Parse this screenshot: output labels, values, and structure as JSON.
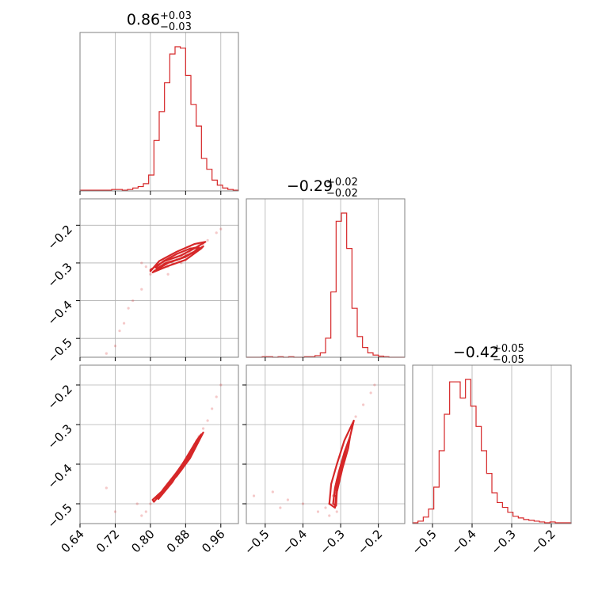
{
  "chart_data": {
    "type": "corner",
    "color": "#d62728",
    "grid": true,
    "parameters": [
      {
        "title": "0.86",
        "title_plus": "+0.03",
        "title_minus": "−0.03",
        "range": [
          0.64,
          1.0
        ],
        "ticks": [
          0.64,
          0.72,
          0.8,
          0.88,
          0.96
        ],
        "tick_labels": [
          "0.64",
          "0.72",
          "0.80",
          "0.88",
          "0.96"
        ],
        "histogram": {
          "bin_edges": [
            0.64,
            0.652,
            0.664,
            0.676,
            0.688,
            0.7,
            0.712,
            0.724,
            0.736,
            0.748,
            0.76,
            0.772,
            0.784,
            0.796,
            0.808,
            0.82,
            0.832,
            0.844,
            0.856,
            0.868,
            0.88,
            0.892,
            0.904,
            0.916,
            0.928,
            0.94,
            0.952,
            0.964,
            0.976,
            0.988,
            1.0
          ],
          "counts": [
            1,
            1,
            1,
            1,
            1,
            1,
            2,
            2,
            1,
            2,
            4,
            6,
            10,
            22,
            70,
            110,
            150,
            190,
            200,
            198,
            160,
            120,
            90,
            45,
            30,
            15,
            8,
            4,
            2,
            1
          ]
        }
      },
      {
        "title": "−0.29",
        "title_plus": "+0.02",
        "title_minus": "−0.02",
        "range": [
          -0.55,
          -0.13
        ],
        "ticks": [
          -0.5,
          -0.4,
          -0.3,
          -0.2
        ],
        "tick_labels": [
          "−0.5",
          "−0.4",
          "−0.3",
          "−0.2"
        ],
        "histogram": {
          "bin_edges": [
            -0.55,
            -0.536,
            -0.522,
            -0.508,
            -0.494,
            -0.48,
            -0.466,
            -0.452,
            -0.438,
            -0.424,
            -0.41,
            -0.396,
            -0.382,
            -0.368,
            -0.354,
            -0.34,
            -0.326,
            -0.312,
            -0.298,
            -0.284,
            -0.27,
            -0.256,
            -0.242,
            -0.228,
            -0.214,
            -0.2,
            -0.186,
            -0.172,
            -0.158,
            -0.144,
            -0.13
          ],
          "counts": [
            0,
            0,
            0,
            1,
            1,
            0,
            1,
            0,
            1,
            0,
            0,
            1,
            1,
            3,
            8,
            35,
            120,
            250,
            265,
            200,
            90,
            38,
            18,
            8,
            4,
            2,
            1,
            0,
            0,
            0
          ]
        }
      },
      {
        "title": "−0.42",
        "title_plus": "+0.05",
        "title_minus": "−0.05",
        "range": [
          -0.55,
          -0.15
        ],
        "ticks": [
          -0.5,
          -0.4,
          -0.3,
          -0.2
        ],
        "tick_labels": [
          "−0.5",
          "−0.4",
          "−0.3",
          "−0.2"
        ],
        "histogram": {
          "bin_edges": [
            -0.55,
            -0.5367,
            -0.5233,
            -0.51,
            -0.4967,
            -0.4833,
            -0.47,
            -0.4567,
            -0.4433,
            -0.43,
            -0.4167,
            -0.4033,
            -0.39,
            -0.3767,
            -0.3633,
            -0.35,
            -0.3367,
            -0.3233,
            -0.31,
            -0.2967,
            -0.2833,
            -0.27,
            -0.2567,
            -0.2433,
            -0.23,
            -0.2167,
            -0.2033,
            -0.19,
            -0.1767,
            -0.1633,
            -0.15
          ],
          "counts": [
            1,
            3,
            8,
            18,
            45,
            90,
            135,
            175,
            175,
            155,
            178,
            145,
            120,
            90,
            62,
            38,
            26,
            20,
            14,
            9,
            7,
            5,
            4,
            3,
            2,
            1,
            2,
            1,
            1,
            1
          ]
        }
      }
    ],
    "pairs": [
      {
        "x_param": 0,
        "y_param": 1,
        "points": [
          [
            0.82,
            -0.31
          ],
          [
            0.83,
            -0.3
          ],
          [
            0.84,
            -0.31
          ],
          [
            0.85,
            -0.3
          ],
          [
            0.86,
            -0.29
          ],
          [
            0.87,
            -0.28
          ],
          [
            0.88,
            -0.28
          ],
          [
            0.89,
            -0.27
          ],
          [
            0.9,
            -0.26
          ],
          [
            0.91,
            -0.25
          ],
          [
            0.93,
            -0.24
          ],
          [
            0.95,
            -0.22
          ],
          [
            0.96,
            -0.21
          ],
          [
            0.81,
            -0.32
          ],
          [
            0.8,
            -0.33
          ],
          [
            0.79,
            -0.31
          ],
          [
            0.78,
            -0.3
          ],
          [
            0.78,
            -0.37
          ],
          [
            0.76,
            -0.4
          ],
          [
            0.75,
            -0.42
          ],
          [
            0.74,
            -0.46
          ],
          [
            0.73,
            -0.48
          ],
          [
            0.72,
            -0.52
          ],
          [
            0.7,
            -0.54
          ],
          [
            0.84,
            -0.33
          ],
          [
            0.87,
            -0.3
          ],
          [
            0.89,
            -0.26
          ],
          [
            0.92,
            -0.25
          ]
        ],
        "contours": [
          [
            [
              0.815,
              -0.315
            ],
            [
              0.835,
              -0.3
            ],
            [
              0.865,
              -0.29
            ],
            [
              0.9,
              -0.27
            ],
            [
              0.91,
              -0.258
            ],
            [
              0.89,
              -0.262
            ],
            [
              0.86,
              -0.276
            ],
            [
              0.83,
              -0.295
            ],
            [
              0.812,
              -0.312
            ]
          ],
          [
            [
              0.8,
              -0.318
            ],
            [
              0.83,
              -0.296
            ],
            [
              0.87,
              -0.28
            ],
            [
              0.905,
              -0.258
            ],
            [
              0.925,
              -0.244
            ],
            [
              0.9,
              -0.25
            ],
            [
              0.86,
              -0.27
            ],
            [
              0.82,
              -0.295
            ],
            [
              0.8,
              -0.322
            ]
          ],
          [
            [
              0.805,
              -0.325
            ],
            [
              0.84,
              -0.308
            ],
            [
              0.88,
              -0.292
            ],
            [
              0.915,
              -0.262
            ],
            [
              0.92,
              -0.256
            ],
            [
              0.88,
              -0.284
            ],
            [
              0.84,
              -0.3
            ],
            [
              0.808,
              -0.322
            ]
          ]
        ]
      },
      {
        "x_param": 0,
        "y_param": 2,
        "points": [
          [
            0.8,
            -0.5
          ],
          [
            0.82,
            -0.48
          ],
          [
            0.84,
            -0.45
          ],
          [
            0.86,
            -0.42
          ],
          [
            0.88,
            -0.39
          ],
          [
            0.9,
            -0.35
          ],
          [
            0.92,
            -0.31
          ],
          [
            0.94,
            -0.26
          ],
          [
            0.95,
            -0.23
          ],
          [
            0.96,
            -0.2
          ],
          [
            0.79,
            -0.52
          ],
          [
            0.78,
            -0.53
          ],
          [
            0.7,
            -0.46
          ],
          [
            0.72,
            -0.52
          ],
          [
            0.77,
            -0.5
          ],
          [
            0.83,
            -0.47
          ],
          [
            0.87,
            -0.41
          ],
          [
            0.89,
            -0.37
          ],
          [
            0.91,
            -0.33
          ],
          [
            0.93,
            -0.29
          ]
        ],
        "contours": [
          [
            [
              0.815,
              -0.48
            ],
            [
              0.84,
              -0.455
            ],
            [
              0.87,
              -0.415
            ],
            [
              0.89,
              -0.38
            ],
            [
              0.915,
              -0.325
            ],
            [
              0.905,
              -0.34
            ],
            [
              0.88,
              -0.39
            ],
            [
              0.85,
              -0.445
            ],
            [
              0.818,
              -0.488
            ]
          ],
          [
            [
              0.805,
              -0.49
            ],
            [
              0.83,
              -0.465
            ],
            [
              0.86,
              -0.43
            ],
            [
              0.89,
              -0.385
            ],
            [
              0.92,
              -0.32
            ],
            [
              0.9,
              -0.35
            ],
            [
              0.87,
              -0.405
            ],
            [
              0.835,
              -0.46
            ],
            [
              0.808,
              -0.495
            ]
          ],
          [
            [
              0.825,
              -0.47
            ],
            [
              0.85,
              -0.44
            ],
            [
              0.875,
              -0.405
            ],
            [
              0.895,
              -0.37
            ],
            [
              0.885,
              -0.38
            ],
            [
              0.86,
              -0.42
            ],
            [
              0.83,
              -0.462
            ]
          ]
        ]
      },
      {
        "x_param": 1,
        "y_param": 2,
        "points": [
          [
            -0.33,
            -0.5
          ],
          [
            -0.32,
            -0.48
          ],
          [
            -0.31,
            -0.45
          ],
          [
            -0.3,
            -0.42
          ],
          [
            -0.29,
            -0.39
          ],
          [
            -0.28,
            -0.35
          ],
          [
            -0.27,
            -0.31
          ],
          [
            -0.26,
            -0.28
          ],
          [
            -0.24,
            -0.25
          ],
          [
            -0.22,
            -0.22
          ],
          [
            -0.21,
            -0.2
          ],
          [
            -0.33,
            -0.53
          ],
          [
            -0.34,
            -0.51
          ],
          [
            -0.44,
            -0.49
          ],
          [
            -0.46,
            -0.51
          ],
          [
            -0.53,
            -0.48
          ],
          [
            -0.48,
            -0.47
          ],
          [
            -0.4,
            -0.5
          ],
          [
            -0.36,
            -0.52
          ],
          [
            -0.31,
            -0.52
          ]
        ],
        "contours": [
          [
            [
              -0.32,
              -0.5
            ],
            [
              -0.315,
              -0.46
            ],
            [
              -0.305,
              -0.42
            ],
            [
              -0.29,
              -0.37
            ],
            [
              -0.275,
              -0.33
            ],
            [
              -0.28,
              -0.36
            ],
            [
              -0.295,
              -0.41
            ],
            [
              -0.31,
              -0.47
            ],
            [
              -0.312,
              -0.505
            ]
          ],
          [
            [
              -0.33,
              -0.5
            ],
            [
              -0.325,
              -0.45
            ],
            [
              -0.31,
              -0.4
            ],
            [
              -0.29,
              -0.34
            ],
            [
              -0.265,
              -0.29
            ],
            [
              -0.275,
              -0.33
            ],
            [
              -0.295,
              -0.39
            ],
            [
              -0.31,
              -0.46
            ],
            [
              -0.315,
              -0.51
            ]
          ],
          [
            [
              -0.318,
              -0.48
            ],
            [
              -0.31,
              -0.44
            ],
            [
              -0.298,
              -0.4
            ],
            [
              -0.285,
              -0.36
            ],
            [
              -0.29,
              -0.38
            ],
            [
              -0.302,
              -0.43
            ],
            [
              -0.312,
              -0.48
            ]
          ]
        ]
      }
    ]
  }
}
